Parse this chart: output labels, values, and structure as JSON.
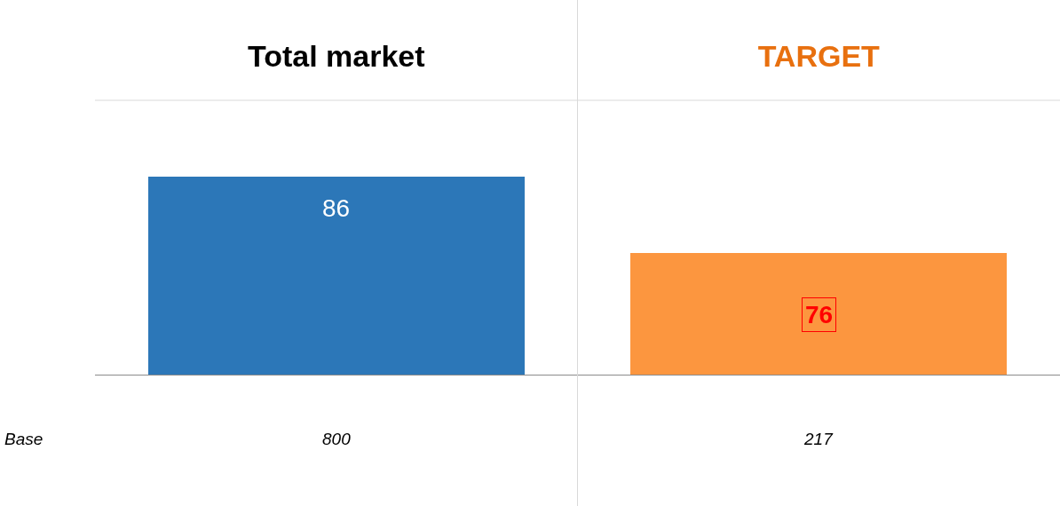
{
  "chart_data": {
    "type": "bar",
    "categories": [
      "Total market",
      "TARGET"
    ],
    "values": [
      86,
      76
    ],
    "colors": [
      "#2c77b8",
      "#fc963f"
    ],
    "ylim": [
      60,
      96
    ],
    "tick_labels": "x",
    "data_labels": true,
    "legend": false,
    "annotations": [
      "Base",
      "800",
      "217"
    ]
  }
}
